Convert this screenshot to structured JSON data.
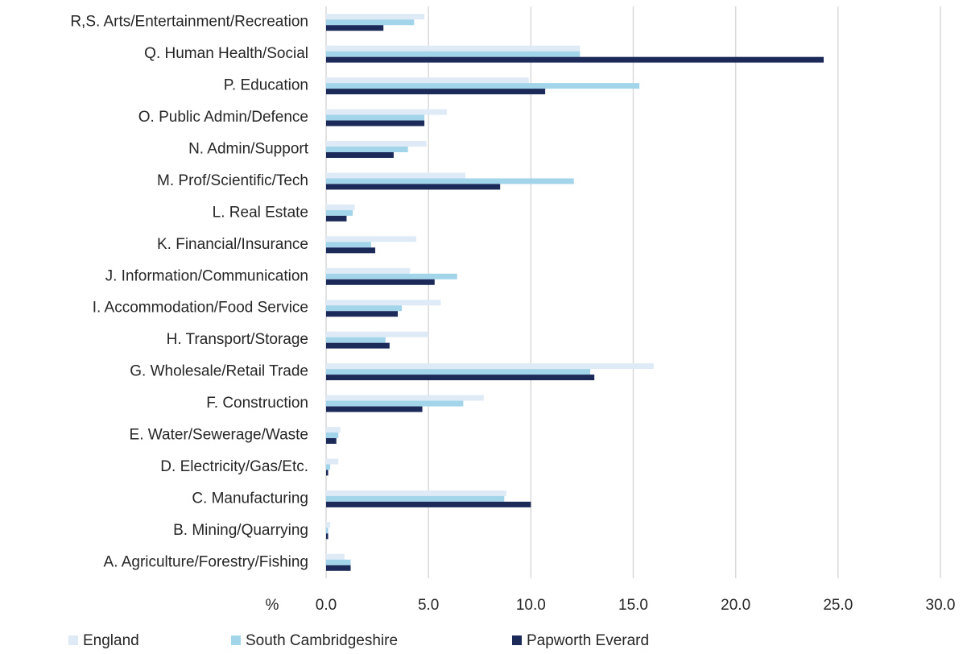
{
  "chart_data": {
    "type": "bar",
    "orientation": "horizontal",
    "categories": [
      "R,S. Arts/Entertainment/Recreation",
      "Q. Human Health/Social",
      "P. Education",
      "O. Public Admin/Defence",
      "N. Admin/Support",
      "M. Prof/Scientific/Tech",
      "L. Real Estate",
      "K. Financial/Insurance",
      "J. Information/Communication",
      "I. Accommodation/Food Service",
      "H. Transport/Storage",
      "G. Wholesale/Retail Trade",
      "F. Construction",
      "E. Water/Sewerage/Waste",
      "D. Electricity/Gas/Etc.",
      "C. Manufacturing",
      "B. Mining/Quarrying",
      "A. Agriculture/Forestry/Fishing"
    ],
    "series": [
      {
        "name": "England",
        "color": "#deebf7",
        "values": [
          4.8,
          12.4,
          9.9,
          5.9,
          4.9,
          6.8,
          1.4,
          4.4,
          4.1,
          5.6,
          5.0,
          16.0,
          7.7,
          0.7,
          0.6,
          8.8,
          0.2,
          0.9
        ]
      },
      {
        "name": "South Cambridgeshire",
        "color": "#a3d5ea",
        "values": [
          4.3,
          12.4,
          15.3,
          4.8,
          4.0,
          12.1,
          1.3,
          2.2,
          6.4,
          3.7,
          2.9,
          12.9,
          6.7,
          0.6,
          0.2,
          8.7,
          0.1,
          1.2
        ]
      },
      {
        "name": "Papworth Everard",
        "color": "#1c2a5a",
        "values": [
          2.8,
          24.3,
          10.7,
          4.8,
          3.3,
          8.5,
          1.0,
          2.4,
          5.3,
          3.5,
          3.1,
          13.1,
          4.7,
          0.5,
          0.1,
          10.0,
          0.1,
          1.2
        ]
      }
    ],
    "x_label": "%",
    "xlim": [
      0,
      30
    ],
    "xticks": [
      {
        "value": 0,
        "label": "0.0"
      },
      {
        "value": 5,
        "label": "5.0"
      },
      {
        "value": 10,
        "label": "10.0"
      },
      {
        "value": 15,
        "label": "15.0"
      },
      {
        "value": 20,
        "label": "20.0"
      },
      {
        "value": 25,
        "label": "25.0"
      },
      {
        "value": 30,
        "label": "30.0"
      }
    ],
    "grid": true,
    "legend": "bottom"
  }
}
